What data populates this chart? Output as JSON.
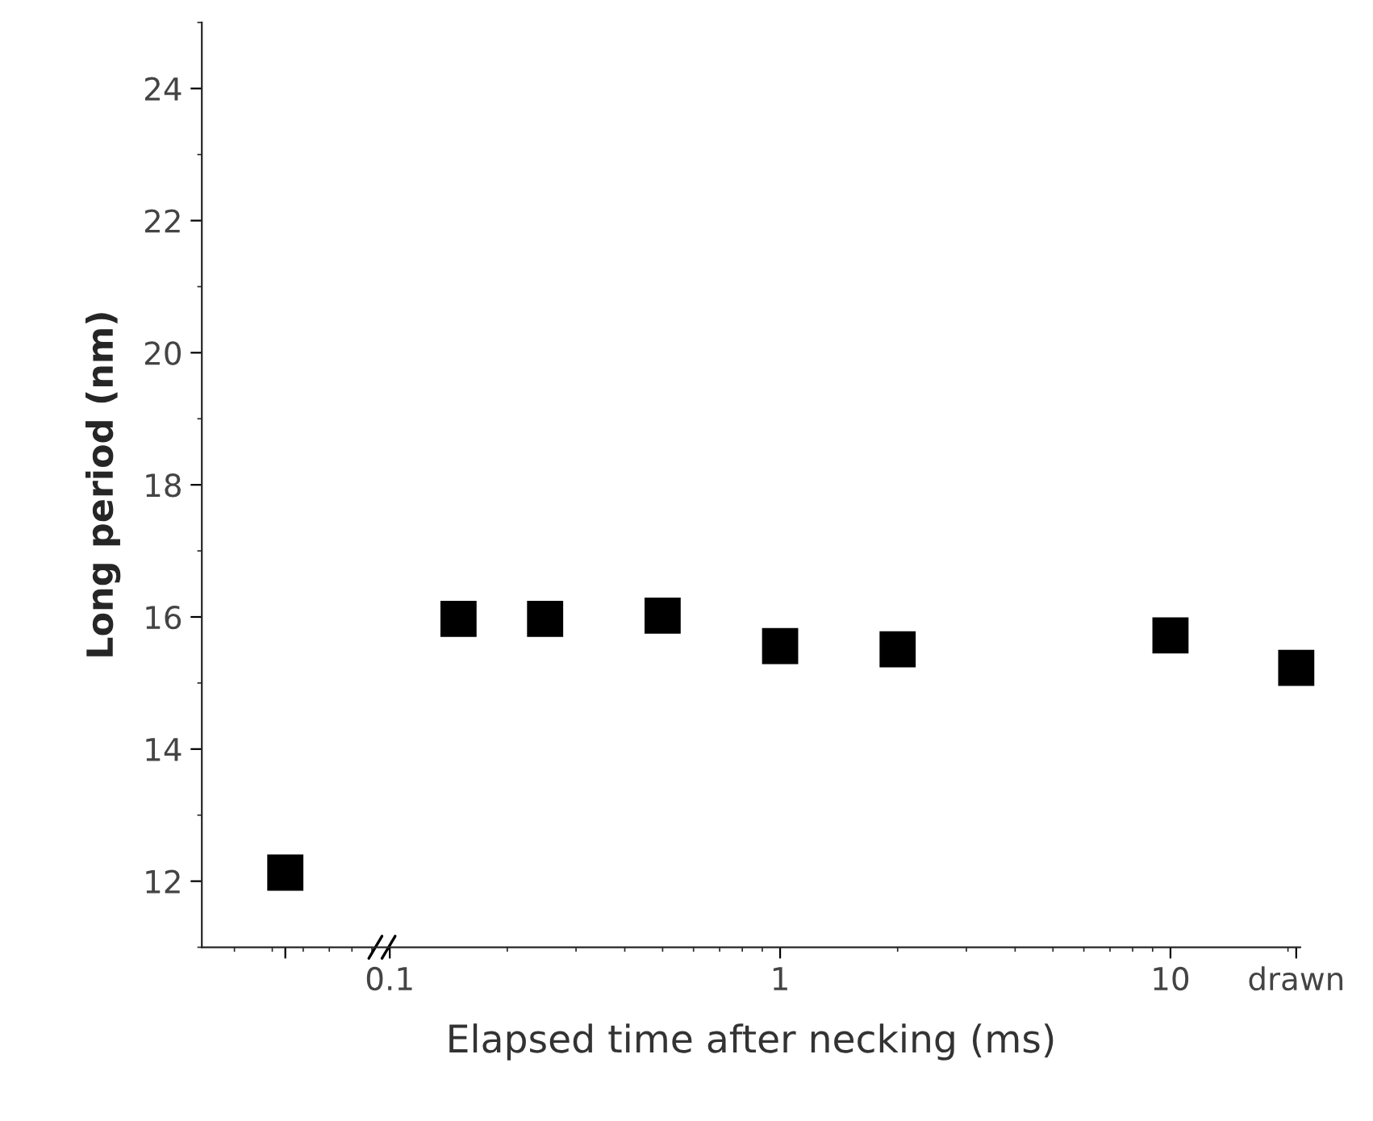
{
  "chart_data": {
    "type": "scatter",
    "xlabel": "Elapsed time after necking (ms)",
    "ylabel": "Long period (nm)",
    "x": [
      0.054,
      0.15,
      0.25,
      0.5,
      1,
      2,
      10,
      21
    ],
    "series": [
      {
        "color": "#000000",
        "values": [
          12.13,
          15.97,
          15.97,
          16.02,
          15.56,
          15.51,
          15.72,
          15.23
        ]
      }
    ],
    "log": "x",
    "xlim": [
      0.033,
      21.5
    ],
    "xticks": [
      {
        "value": 0.054,
        "label": null
      },
      0.1,
      1,
      10,
      {
        "value": 21,
        "label": "drawn"
      }
    ],
    "ylim": [
      11,
      25
    ],
    "yticks": [
      12,
      14,
      16,
      18,
      20,
      22,
      24
    ],
    "marker": "square",
    "grid": false,
    "legend": false
  }
}
